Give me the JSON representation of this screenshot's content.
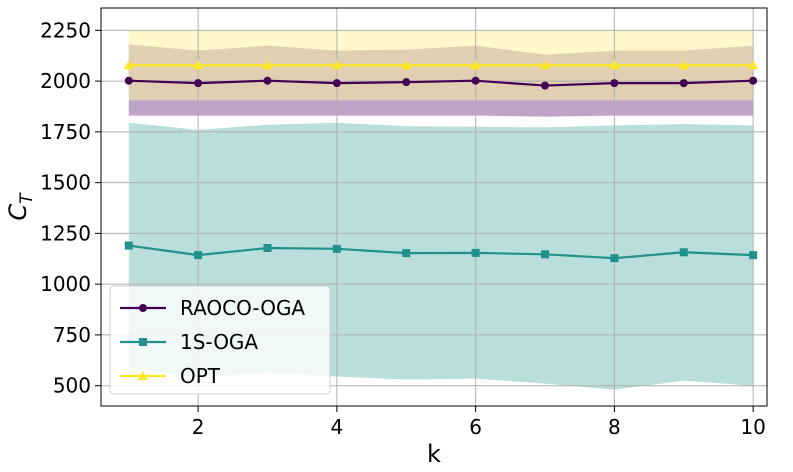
{
  "chart_data": {
    "type": "line",
    "xlabel": "k",
    "ylabel": "C_T",
    "xlim": [
      0.6,
      10.2
    ],
    "ylim": [
      400,
      2360
    ],
    "x_ticks": [
      2,
      4,
      6,
      8,
      10
    ],
    "y_ticks": [
      500,
      750,
      1000,
      1250,
      1500,
      1750,
      2000,
      2250
    ],
    "grid": true,
    "legend_position": "lower-left",
    "x": [
      1,
      2,
      3,
      4,
      5,
      6,
      7,
      8,
      9,
      10
    ],
    "series": [
      {
        "name": "RAOCO-OGA",
        "color": "#440154",
        "marker": "circle",
        "values": [
          2002,
          1990,
          2002,
          1990,
          1995,
          2002,
          1978,
          1990,
          1990,
          2002
        ],
        "band_upper": [
          2180,
          2150,
          2175,
          2150,
          2155,
          2175,
          2130,
          2150,
          2150,
          2175
        ],
        "band_lower": [
          1830,
          1830,
          1830,
          1830,
          1830,
          1830,
          1825,
          1830,
          1830,
          1830
        ],
        "band_color": "#8b5a9a"
      },
      {
        "name": "1S-OGA",
        "color": "#21918c",
        "marker": "square",
        "values": [
          1190,
          1143,
          1178,
          1174,
          1153,
          1154,
          1147,
          1128,
          1157,
          1143
        ],
        "band_upper": [
          1795,
          1760,
          1785,
          1795,
          1778,
          1775,
          1772,
          1782,
          1788,
          1782
        ],
        "band_lower": [
          590,
          540,
          565,
          545,
          530,
          535,
          510,
          480,
          525,
          500
        ],
        "band_color": "#7fc2bf"
      },
      {
        "name": "OPT",
        "color": "#fde725",
        "marker": "triangle",
        "values": [
          2078,
          2078,
          2078,
          2078,
          2078,
          2078,
          2078,
          2078,
          2078,
          2078
        ],
        "band_upper": [
          2250,
          2250,
          2250,
          2250,
          2250,
          2250,
          2250,
          2250,
          2250,
          2250
        ],
        "band_lower": [
          1905,
          1905,
          1905,
          1905,
          1905,
          1905,
          1905,
          1905,
          1905,
          1905
        ],
        "band_color": "#fdf3a0"
      }
    ]
  }
}
